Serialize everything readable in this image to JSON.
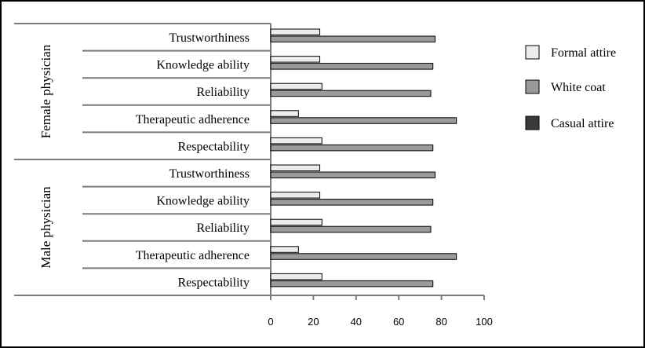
{
  "colors": {
    "Formal attire": "#ececec",
    "White coat": "#9a9a9a",
    "Casual attire": "#3a3a3a",
    "axis": "#7a7a7a",
    "border": "#000000"
  },
  "chart_data": {
    "type": "bar",
    "orientation": "horizontal",
    "title": "",
    "xlabel": "",
    "ylabel": "",
    "xlim": [
      0,
      100
    ],
    "xticks": [
      0,
      20,
      40,
      60,
      80,
      100
    ],
    "legend": [
      "Formal attire",
      "White coat",
      "Casual attire"
    ],
    "legend_position": "right",
    "grid": false,
    "groups": [
      {
        "name": "Female physician",
        "categories": [
          "Trustworthiness",
          "Knowledge ability",
          "Reliability",
          "Therapeutic adherence",
          "Respectability"
        ],
        "series": [
          {
            "name": "Formal attire",
            "values": [
              23,
              23,
              24,
              13,
              24
            ]
          },
          {
            "name": "White coat",
            "values": [
              77,
              76,
              75,
              87,
              76
            ]
          }
        ]
      },
      {
        "name": "Male physician",
        "categories": [
          "Trustworthiness",
          "Knowledge ability",
          "Reliability",
          "Therapeutic adherence",
          "Respectability"
        ],
        "series": [
          {
            "name": "Formal attire",
            "values": [
              23,
              23,
              24,
              13,
              24
            ]
          },
          {
            "name": "White coat",
            "values": [
              77,
              76,
              75,
              87,
              76
            ]
          }
        ]
      }
    ]
  }
}
